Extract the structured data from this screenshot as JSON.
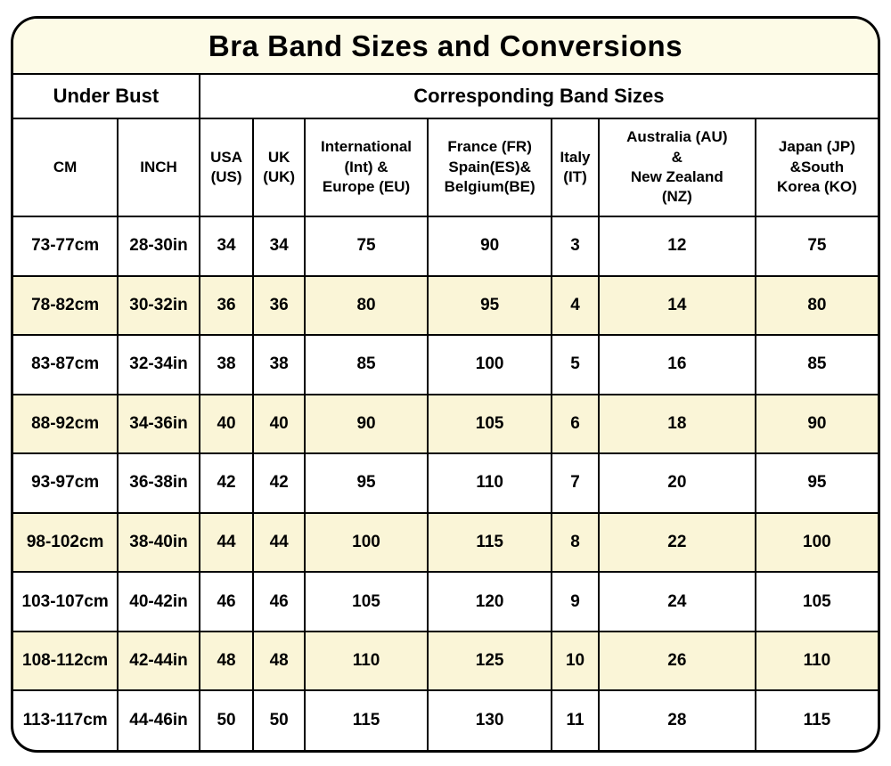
{
  "title": "Bra Band Sizes and Conversions",
  "sections": {
    "under_bust": "Under Bust",
    "band_sizes": "Corresponding Band Sizes"
  },
  "table": {
    "columns": [
      "CM",
      "INCH",
      "USA\n(US)",
      "UK\n(UK)",
      "International\n(Int) &\nEurope (EU)",
      "France (FR)\nSpain(ES)&\nBelgium(BE)",
      "Italy\n(IT)",
      "Australia (AU)\n&\nNew Zealand\n(NZ)",
      "Japan (JP)\n&South\nKorea (KO)"
    ],
    "rows": [
      [
        "73-77cm",
        "28-30in",
        "34",
        "34",
        "75",
        "90",
        "3",
        "12",
        "75"
      ],
      [
        "78-82cm",
        "30-32in",
        "36",
        "36",
        "80",
        "95",
        "4",
        "14",
        "80"
      ],
      [
        "83-87cm",
        "32-34in",
        "38",
        "38",
        "85",
        "100",
        "5",
        "16",
        "85"
      ],
      [
        "88-92cm",
        "34-36in",
        "40",
        "40",
        "90",
        "105",
        "6",
        "18",
        "90"
      ],
      [
        "93-97cm",
        "36-38in",
        "42",
        "42",
        "95",
        "110",
        "7",
        "20",
        "95"
      ],
      [
        "98-102cm",
        "38-40in",
        "44",
        "44",
        "100",
        "115",
        "8",
        "22",
        "100"
      ],
      [
        "103-107cm",
        "40-42in",
        "46",
        "46",
        "105",
        "120",
        "9",
        "24",
        "105"
      ],
      [
        "108-112cm",
        "42-44in",
        "48",
        "48",
        "110",
        "125",
        "10",
        "26",
        "110"
      ],
      [
        "113-117cm",
        "44-46in",
        "50",
        "50",
        "115",
        "130",
        "11",
        "28",
        "115"
      ]
    ]
  },
  "colors": {
    "title_background": "#FDFBE7",
    "alt_row_background": "#FAF5D7",
    "border": "#000000",
    "text": "#000000"
  },
  "chart_data": {
    "type": "table",
    "title": "Bra Band Sizes and Conversions",
    "column_groups": [
      {
        "label": "Under Bust",
        "span": 2
      },
      {
        "label": "Corresponding Band Sizes",
        "span": 7
      }
    ],
    "columns": [
      "CM",
      "INCH",
      "USA (US)",
      "UK (UK)",
      "International (Int) & Europe (EU)",
      "France (FR) Spain(ES)& Belgium(BE)",
      "Italy (IT)",
      "Australia (AU) & New Zealand (NZ)",
      "Japan (JP) &South Korea (KO)"
    ],
    "rows": [
      [
        "73-77cm",
        "28-30in",
        34,
        34,
        75,
        90,
        3,
        12,
        75
      ],
      [
        "78-82cm",
        "30-32in",
        36,
        36,
        80,
        95,
        4,
        14,
        80
      ],
      [
        "83-87cm",
        "32-34in",
        38,
        38,
        85,
        100,
        5,
        16,
        85
      ],
      [
        "88-92cm",
        "34-36in",
        40,
        40,
        90,
        105,
        6,
        18,
        90
      ],
      [
        "93-97cm",
        "36-38in",
        42,
        42,
        95,
        110,
        7,
        20,
        95
      ],
      [
        "98-102cm",
        "38-40in",
        44,
        44,
        100,
        115,
        8,
        22,
        100
      ],
      [
        "103-107cm",
        "40-42in",
        46,
        46,
        105,
        120,
        9,
        24,
        105
      ],
      [
        "108-112cm",
        "42-44in",
        48,
        48,
        110,
        125,
        10,
        26,
        110
      ],
      [
        "113-117cm",
        "44-46in",
        50,
        50,
        115,
        130,
        11,
        28,
        115
      ]
    ],
    "layout_hints": {
      "alternating_row_shading": "odd data rows white, even data rows cream",
      "all_text_bold_centered": true,
      "rounded_outer_border": true
    }
  }
}
